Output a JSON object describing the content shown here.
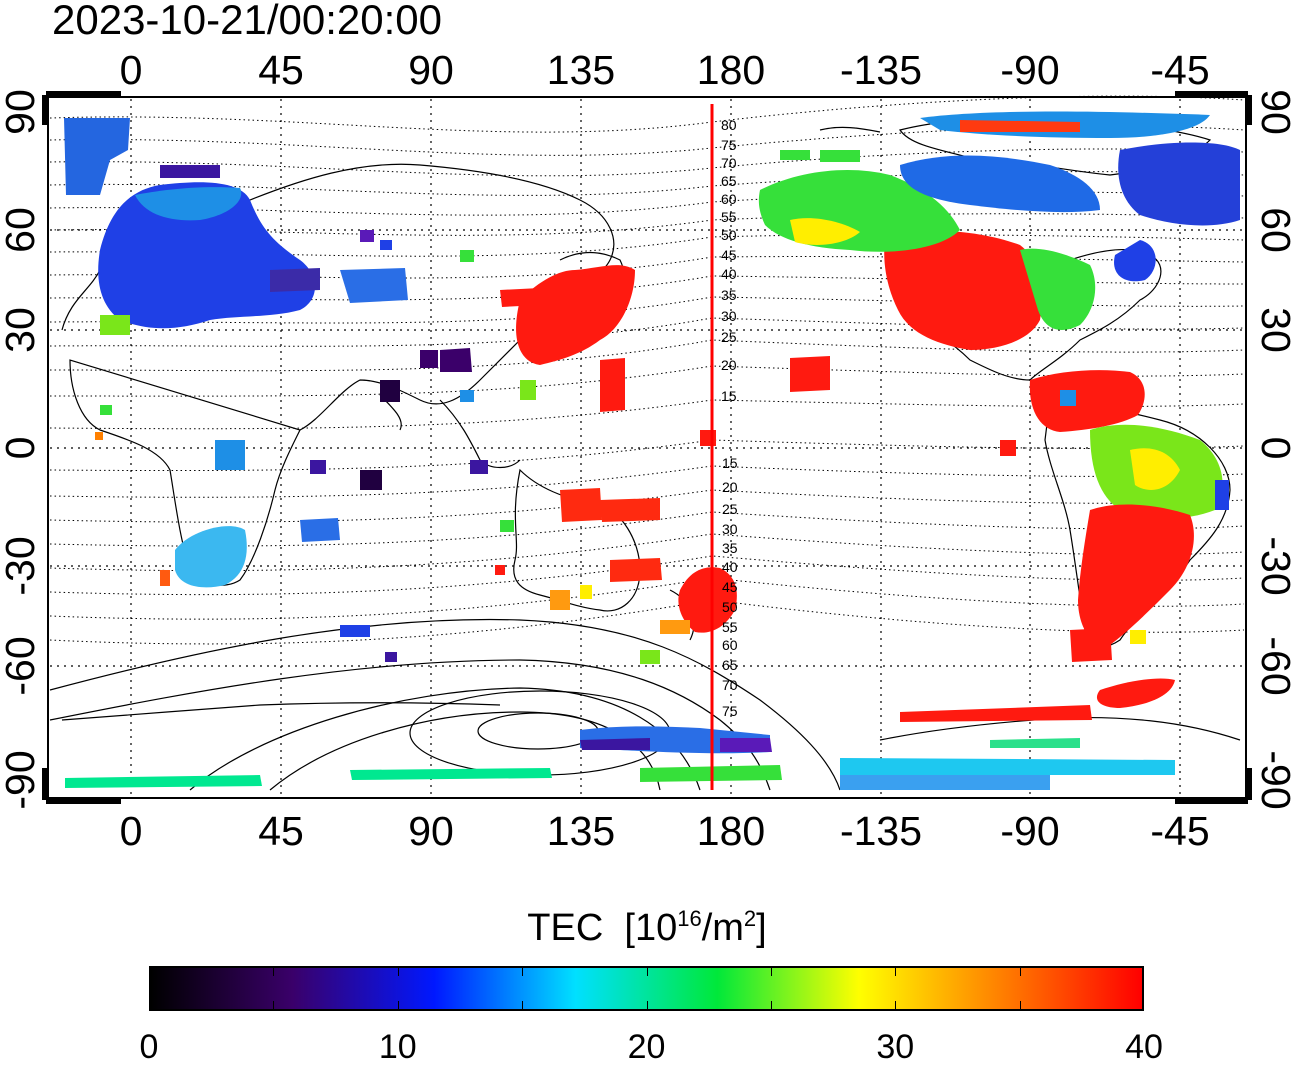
{
  "timestamp": "2023-10-21/00:20:00",
  "map": {
    "top_lon_labels": [
      "0",
      "45",
      "90",
      "135",
      "180",
      "-135",
      "-90",
      "-45"
    ],
    "bottom_lon_labels": [
      "0",
      "45",
      "90",
      "135",
      "180",
      "-135",
      "-90",
      "-45"
    ],
    "lat_labels": [
      "90",
      "60",
      "30",
      "0",
      "-30",
      "-60",
      "-90"
    ],
    "maglat_north_labels": [
      "80",
      "75",
      "70",
      "65",
      "60",
      "55",
      "50",
      "45",
      "40",
      "35",
      "30",
      "25",
      "20",
      "15"
    ],
    "maglat_south_labels": [
      "15",
      "20",
      "25",
      "30",
      "35",
      "40",
      "45",
      "50",
      "55",
      "60",
      "65",
      "70",
      "75"
    ],
    "meridian_color": "#ff0000"
  },
  "colorbar": {
    "title": "TEC",
    "unit_base": "[10",
    "unit_exp": "16",
    "unit_mid": "/m",
    "unit_exp2": "2",
    "unit_end": "]",
    "ticks": [
      "0",
      "10",
      "20",
      "30",
      "40"
    ],
    "colors": [
      "#000000",
      "#3a006a",
      "#0018ff",
      "#00e0ff",
      "#00e83a",
      "#ffff00",
      "#ff8000",
      "#ff0000"
    ]
  }
}
